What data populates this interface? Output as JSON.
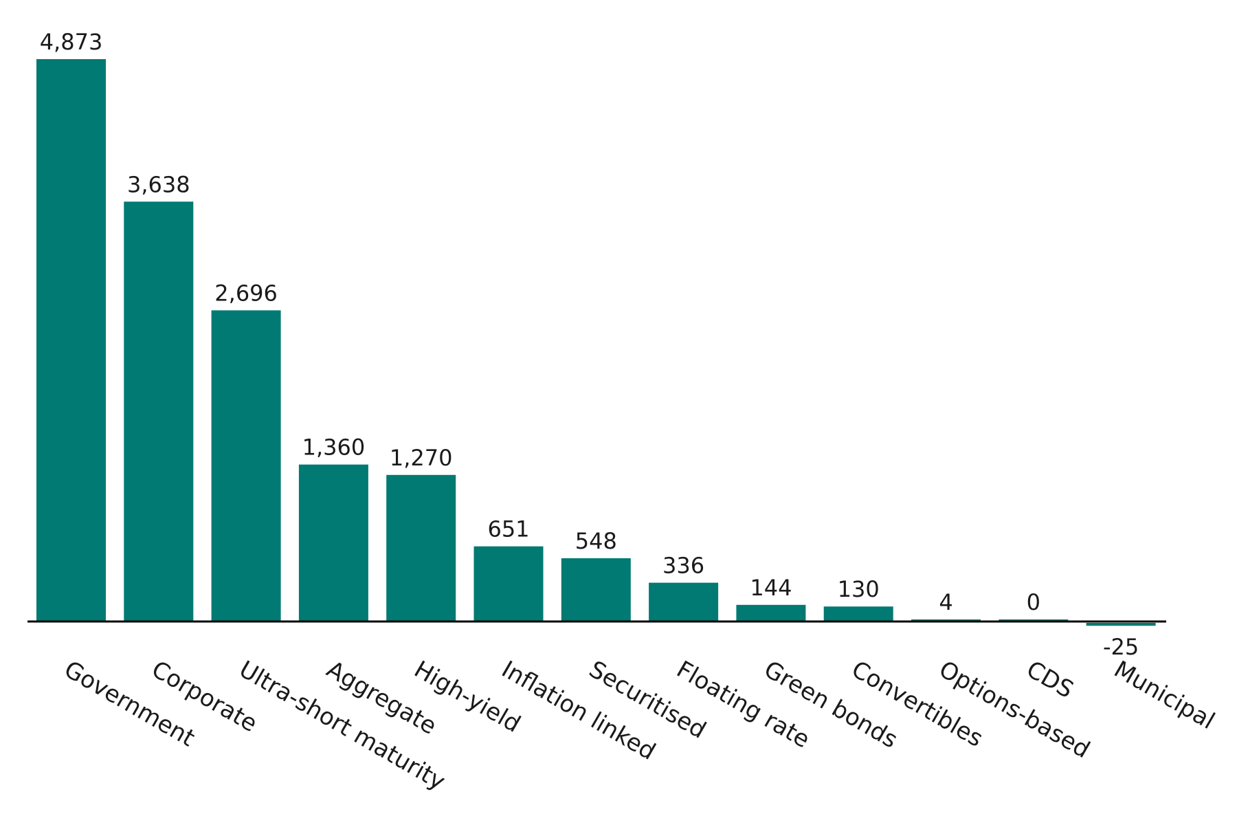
{
  "chart_data": {
    "type": "bar",
    "title": "",
    "xlabel": "",
    "ylabel": "",
    "categories": [
      "Government",
      "Corporate",
      "Ultra-short maturity",
      "Aggregate",
      "High-yield",
      "Inflation linked",
      "Securitised",
      "Floating rate",
      "Green bonds",
      "Convertibles",
      "Options-based",
      "CDS",
      "Municipal"
    ],
    "values": [
      4873,
      3638,
      2696,
      1360,
      1270,
      651,
      548,
      336,
      144,
      130,
      4,
      0,
      -25
    ],
    "value_labels": [
      "4,873",
      "3,638",
      "2,696",
      "1,360",
      "1,270",
      "651",
      "548",
      "336",
      "144",
      "130",
      "4",
      "0",
      "-25"
    ],
    "ylim": [
      -25,
      4873
    ],
    "grid": false,
    "legend": "none",
    "colors": {
      "bar": "#007a72",
      "axis": "#000000",
      "text": "#1a1a1a"
    }
  }
}
